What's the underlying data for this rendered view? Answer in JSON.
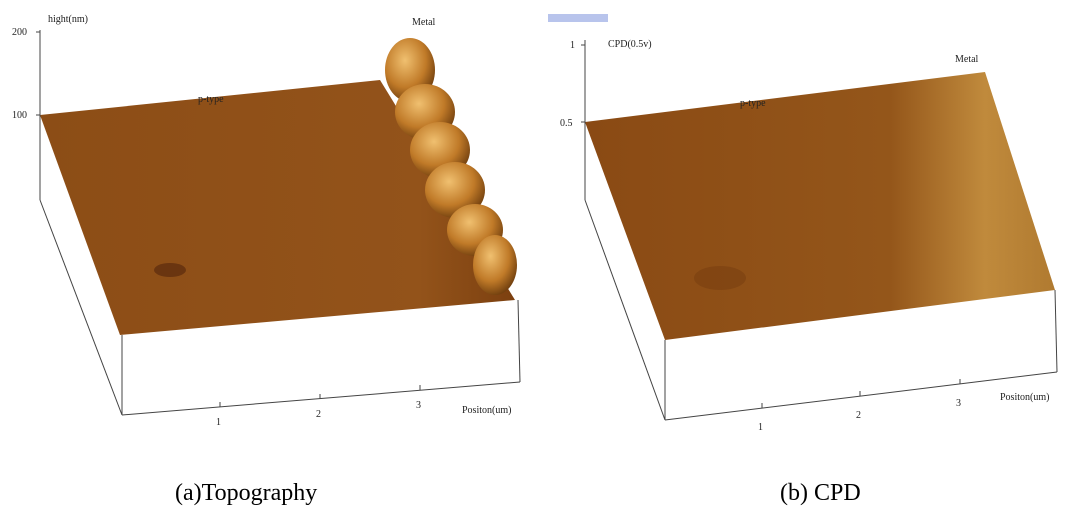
{
  "panels": [
    {
      "z_label": "hight(nm)",
      "z_ticks": [
        200,
        100
      ],
      "region_labels": [
        "p-type",
        "Metal"
      ],
      "x_ticks": [
        1,
        2,
        3
      ],
      "x_label": "Positon(um)",
      "caption": "(a)Topography"
    },
    {
      "z_label": "CPD(0.5v)",
      "z_ticks": [
        1,
        0.5
      ],
      "region_labels": [
        "p-type",
        "Metal"
      ],
      "x_ticks": [
        1,
        2,
        3
      ],
      "x_label": "Positon(um)",
      "caption": "(b) CPD"
    }
  ]
}
